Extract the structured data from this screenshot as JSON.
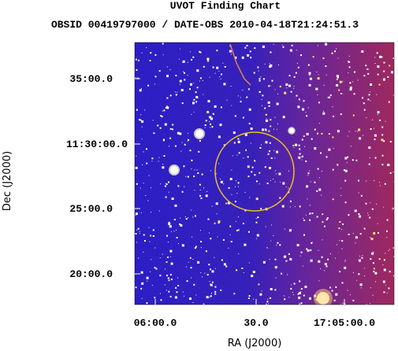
{
  "header": {
    "title": "UVOT Finding Chart",
    "subtitle": "OBSID 00419797000 / DATE-OBS 2010-04-18T21:24:51.3"
  },
  "x_axis": {
    "label": "RA (J2000)",
    "ticks": [
      "06:00.0",
      "30.0",
      "17:05:00.0"
    ]
  },
  "y_axis": {
    "label": "Dec (J2000)",
    "ticks": [
      "35:00.0",
      "11:30:00.0",
      "25:00.0",
      "20:00.0"
    ]
  }
}
